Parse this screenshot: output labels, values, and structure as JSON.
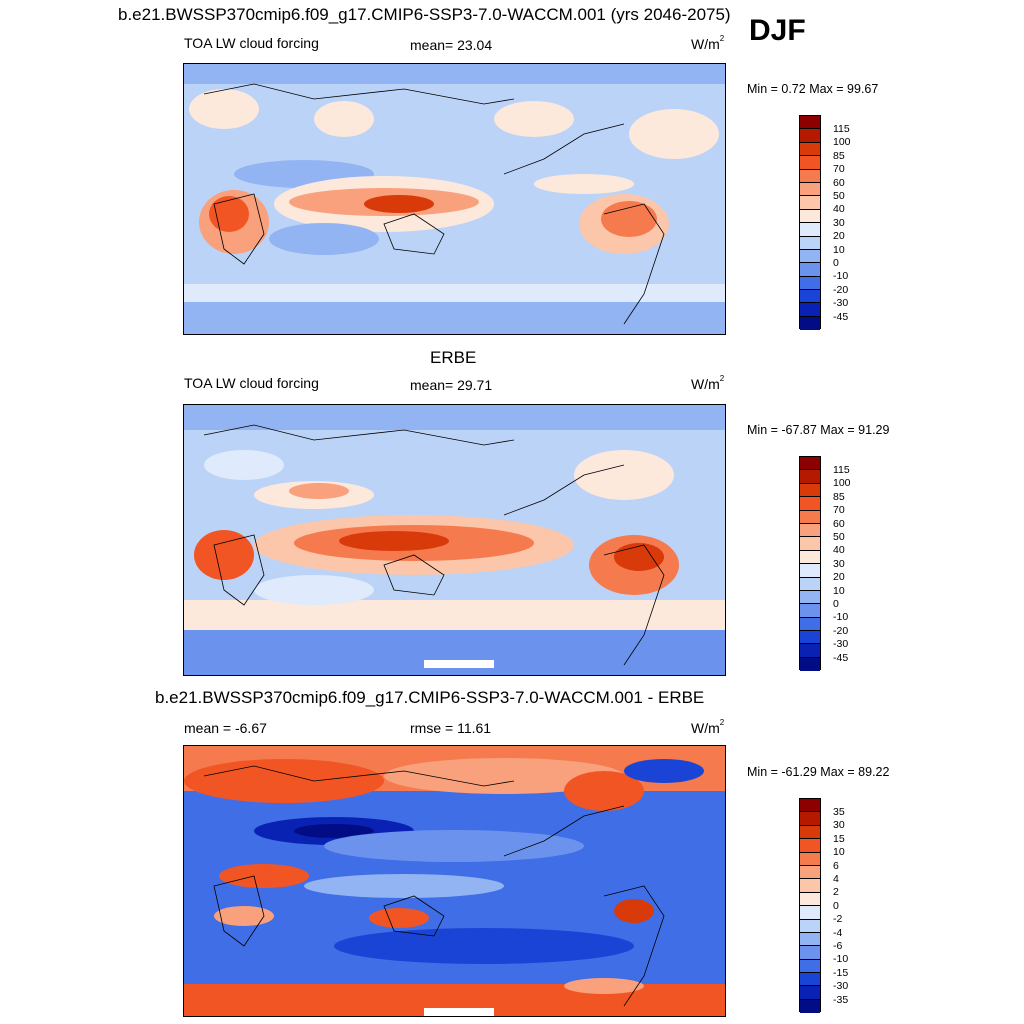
{
  "season": "DJF",
  "panels": [
    {
      "title": "b.e21.BWSSP370cmip6.f09_g17.CMIP6-SSP3-7.0-WACCM.001 (yrs 2046-2075)",
      "left_label": "TOA LW cloud forcing",
      "center_label": "mean=  23.04",
      "units": "W/m",
      "units_exp": "2",
      "minmax": "Min =   0.72 Max =  99.67",
      "colorbar": {
        "levels": [
          "115",
          "100",
          "85",
          "70",
          "60",
          "50",
          "40",
          "30",
          "20",
          "10",
          "0",
          "-10",
          "-20",
          "-30",
          "-45"
        ],
        "colors": [
          "#8c0000",
          "#b51a00",
          "#d93a0a",
          "#f25524",
          "#f57a4e",
          "#f9a07c",
          "#fbc6aa",
          "#fde8dc",
          "#dfeafc",
          "#bcd3f8",
          "#93b4f3",
          "#6b93ee",
          "#3f6ee6",
          "#1a44d6",
          "#0a22b4",
          "#020c85"
        ]
      }
    },
    {
      "title": "ERBE",
      "left_label": "TOA LW cloud forcing",
      "center_label": "mean=  29.71",
      "units": "W/m",
      "units_exp": "2",
      "minmax": "Min = -67.87 Max =  91.29",
      "colorbar": {
        "levels": [
          "115",
          "100",
          "85",
          "70",
          "60",
          "50",
          "40",
          "30",
          "20",
          "10",
          "0",
          "-10",
          "-20",
          "-30",
          "-45"
        ],
        "colors": [
          "#8c0000",
          "#b51a00",
          "#d93a0a",
          "#f25524",
          "#f57a4e",
          "#f9a07c",
          "#fbc6aa",
          "#fde8dc",
          "#dfeafc",
          "#bcd3f8",
          "#93b4f3",
          "#6b93ee",
          "#3f6ee6",
          "#1a44d6",
          "#0a22b4",
          "#020c85"
        ]
      }
    },
    {
      "title": "b.e21.BWSSP370cmip6.f09_g17.CMIP6-SSP3-7.0-WACCM.001 - ERBE",
      "left_label": "mean =  -6.67",
      "center_label": "rmse =  11.61",
      "units": "W/m",
      "units_exp": "2",
      "minmax": "Min = -61.29 Max =  89.22",
      "colorbar": {
        "levels": [
          "35",
          "30",
          "15",
          "10",
          "6",
          "4",
          "2",
          "0",
          "-2",
          "-4",
          "-6",
          "-10",
          "-15",
          "-30",
          "-35"
        ],
        "colors": [
          "#8c0000",
          "#b51a00",
          "#d93a0a",
          "#f25524",
          "#f57a4e",
          "#f9a07c",
          "#fbc6aa",
          "#fde8dc",
          "#dfeafc",
          "#bcd3f8",
          "#93b4f3",
          "#6b93ee",
          "#3f6ee6",
          "#1a44d6",
          "#0a22b4",
          "#020c85"
        ]
      }
    }
  ]
}
